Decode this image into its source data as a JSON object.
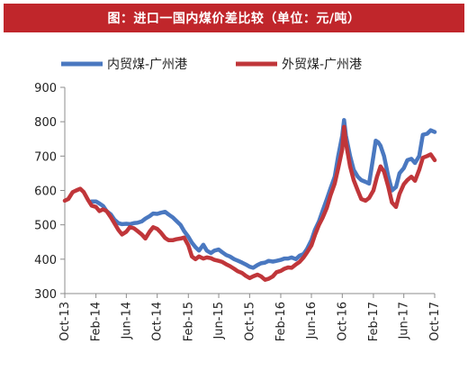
{
  "header": {
    "title": "图：进口一国内煤价差比较（单位：元/吨）"
  },
  "colors": {
    "title_bg": "#c0262b",
    "series_1": "#4a78c0",
    "series_2": "#c0363a",
    "axis": "#8c8c8c"
  },
  "chart_data": {
    "type": "line",
    "title": "图：进口一国内煤价差比较（单位：元/吨）",
    "xlabel": "",
    "ylabel": "",
    "ylim": [
      300,
      900
    ],
    "yticks": [
      300,
      400,
      500,
      600,
      700,
      800,
      900
    ],
    "xlim": [
      "2013-10",
      "2017-10"
    ],
    "xticks": [
      {
        "date": "2013-10",
        "label": "Oct-13"
      },
      {
        "date": "2014-02",
        "label": "Feb-14"
      },
      {
        "date": "2014-06",
        "label": "Jun-14"
      },
      {
        "date": "2014-10",
        "label": "Oct-14"
      },
      {
        "date": "2015-02",
        "label": "Feb-15"
      },
      {
        "date": "2015-06",
        "label": "Jun-15"
      },
      {
        "date": "2015-10",
        "label": "Oct-15"
      },
      {
        "date": "2016-02",
        "label": "Feb-16"
      },
      {
        "date": "2016-06",
        "label": "Jun-16"
      },
      {
        "date": "2016-10",
        "label": "Oct-16"
      },
      {
        "date": "2017-02",
        "label": "Feb-17"
      },
      {
        "date": "2017-06",
        "label": "Jun-17"
      },
      {
        "date": "2017-10",
        "label": "Oct-17"
      }
    ],
    "grid": false,
    "legend": "top-left",
    "series": [
      {
        "name": "内贸煤-广州港",
        "points": [
          [
            "2014-01-15",
            568
          ],
          [
            "2014-02-01",
            568
          ],
          [
            "2014-02-15",
            562
          ],
          [
            "2014-03-01",
            555
          ],
          [
            "2014-03-15",
            540
          ],
          [
            "2014-04-01",
            530
          ],
          [
            "2014-04-15",
            515
          ],
          [
            "2014-05-01",
            505
          ],
          [
            "2014-05-15",
            502
          ],
          [
            "2014-06-01",
            503
          ],
          [
            "2014-06-15",
            502
          ],
          [
            "2014-07-01",
            505
          ],
          [
            "2014-07-15",
            506
          ],
          [
            "2014-08-01",
            510
          ],
          [
            "2014-08-15",
            518
          ],
          [
            "2014-09-01",
            525
          ],
          [
            "2014-09-15",
            533
          ],
          [
            "2014-10-01",
            532
          ],
          [
            "2014-10-15",
            535
          ],
          [
            "2014-11-01",
            538
          ],
          [
            "2014-11-15",
            530
          ],
          [
            "2014-12-01",
            522
          ],
          [
            "2014-12-15",
            512
          ],
          [
            "2015-01-01",
            500
          ],
          [
            "2015-01-15",
            482
          ],
          [
            "2015-02-01",
            465
          ],
          [
            "2015-02-15",
            448
          ],
          [
            "2015-03-01",
            435
          ],
          [
            "2015-03-15",
            425
          ],
          [
            "2015-04-01",
            442
          ],
          [
            "2015-04-15",
            425
          ],
          [
            "2015-05-01",
            418
          ],
          [
            "2015-05-15",
            425
          ],
          [
            "2015-06-01",
            428
          ],
          [
            "2015-06-15",
            420
          ],
          [
            "2015-07-01",
            412
          ],
          [
            "2015-07-15",
            408
          ],
          [
            "2015-08-01",
            400
          ],
          [
            "2015-08-15",
            396
          ],
          [
            "2015-09-01",
            390
          ],
          [
            "2015-09-15",
            385
          ],
          [
            "2015-10-01",
            378
          ],
          [
            "2015-10-15",
            375
          ],
          [
            "2015-11-01",
            383
          ],
          [
            "2015-11-15",
            388
          ],
          [
            "2015-12-01",
            390
          ],
          [
            "2015-12-15",
            395
          ],
          [
            "2016-01-01",
            393
          ],
          [
            "2016-01-15",
            395
          ],
          [
            "2016-02-01",
            398
          ],
          [
            "2016-02-15",
            402
          ],
          [
            "2016-03-01",
            402
          ],
          [
            "2016-03-15",
            405
          ],
          [
            "2016-04-01",
            400
          ],
          [
            "2016-04-15",
            410
          ],
          [
            "2016-05-01",
            415
          ],
          [
            "2016-05-15",
            430
          ],
          [
            "2016-06-01",
            455
          ],
          [
            "2016-06-15",
            485
          ],
          [
            "2016-07-01",
            510
          ],
          [
            "2016-07-15",
            540
          ],
          [
            "2016-08-01",
            575
          ],
          [
            "2016-08-15",
            605
          ],
          [
            "2016-09-01",
            640
          ],
          [
            "2016-09-15",
            700
          ],
          [
            "2016-10-01",
            760
          ],
          [
            "2016-10-08",
            805
          ],
          [
            "2016-10-15",
            760
          ],
          [
            "2016-11-01",
            700
          ],
          [
            "2016-11-15",
            660
          ],
          [
            "2016-12-01",
            640
          ],
          [
            "2016-12-15",
            630
          ],
          [
            "2017-01-01",
            625
          ],
          [
            "2017-01-15",
            620
          ],
          [
            "2017-02-01",
            700
          ],
          [
            "2017-02-10",
            745
          ],
          [
            "2017-02-20",
            740
          ],
          [
            "2017-03-01",
            730
          ],
          [
            "2017-03-15",
            700
          ],
          [
            "2017-04-01",
            640
          ],
          [
            "2017-04-15",
            600
          ],
          [
            "2017-05-01",
            610
          ],
          [
            "2017-05-15",
            650
          ],
          [
            "2017-06-01",
            665
          ],
          [
            "2017-06-15",
            688
          ],
          [
            "2017-07-01",
            692
          ],
          [
            "2017-07-15",
            680
          ],
          [
            "2017-08-01",
            700
          ],
          [
            "2017-08-15",
            762
          ],
          [
            "2017-09-01",
            765
          ],
          [
            "2017-09-15",
            775
          ],
          [
            "2017-10-01",
            770
          ]
        ]
      },
      {
        "name": "外贸煤-广州港",
        "points": [
          [
            "2013-10-01",
            570
          ],
          [
            "2013-10-15",
            575
          ],
          [
            "2013-11-01",
            595
          ],
          [
            "2013-11-15",
            600
          ],
          [
            "2013-12-01",
            605
          ],
          [
            "2013-12-15",
            595
          ],
          [
            "2014-01-01",
            572
          ],
          [
            "2014-01-15",
            556
          ],
          [
            "2014-02-01",
            552
          ],
          [
            "2014-02-15",
            540
          ],
          [
            "2014-03-01",
            545
          ],
          [
            "2014-03-15",
            540
          ],
          [
            "2014-04-01",
            522
          ],
          [
            "2014-04-15",
            505
          ],
          [
            "2014-05-01",
            485
          ],
          [
            "2014-05-15",
            472
          ],
          [
            "2014-06-01",
            480
          ],
          [
            "2014-06-15",
            493
          ],
          [
            "2014-07-01",
            490
          ],
          [
            "2014-07-15",
            482
          ],
          [
            "2014-08-01",
            472
          ],
          [
            "2014-08-15",
            460
          ],
          [
            "2014-09-01",
            480
          ],
          [
            "2014-09-15",
            493
          ],
          [
            "2014-10-01",
            488
          ],
          [
            "2014-10-15",
            478
          ],
          [
            "2014-11-01",
            462
          ],
          [
            "2014-11-15",
            455
          ],
          [
            "2014-12-01",
            455
          ],
          [
            "2014-12-15",
            458
          ],
          [
            "2015-01-01",
            460
          ],
          [
            "2015-01-15",
            463
          ],
          [
            "2015-02-01",
            440
          ],
          [
            "2015-02-15",
            408
          ],
          [
            "2015-03-01",
            400
          ],
          [
            "2015-03-15",
            408
          ],
          [
            "2015-04-01",
            402
          ],
          [
            "2015-04-15",
            405
          ],
          [
            "2015-05-01",
            403
          ],
          [
            "2015-05-15",
            398
          ],
          [
            "2015-06-01",
            395
          ],
          [
            "2015-06-15",
            392
          ],
          [
            "2015-07-01",
            385
          ],
          [
            "2015-07-15",
            380
          ],
          [
            "2015-08-01",
            372
          ],
          [
            "2015-08-15",
            365
          ],
          [
            "2015-09-01",
            360
          ],
          [
            "2015-09-15",
            352
          ],
          [
            "2015-10-01",
            345
          ],
          [
            "2015-10-15",
            350
          ],
          [
            "2015-11-01",
            355
          ],
          [
            "2015-11-15",
            350
          ],
          [
            "2015-12-01",
            340
          ],
          [
            "2015-12-15",
            343
          ],
          [
            "2016-01-01",
            350
          ],
          [
            "2016-01-15",
            362
          ],
          [
            "2016-02-01",
            366
          ],
          [
            "2016-02-15",
            372
          ],
          [
            "2016-03-01",
            376
          ],
          [
            "2016-03-15",
            375
          ],
          [
            "2016-04-01",
            385
          ],
          [
            "2016-04-15",
            392
          ],
          [
            "2016-05-01",
            405
          ],
          [
            "2016-05-15",
            420
          ],
          [
            "2016-06-01",
            440
          ],
          [
            "2016-06-15",
            470
          ],
          [
            "2016-07-01",
            500
          ],
          [
            "2016-07-15",
            520
          ],
          [
            "2016-08-01",
            550
          ],
          [
            "2016-08-15",
            585
          ],
          [
            "2016-09-01",
            620
          ],
          [
            "2016-09-15",
            665
          ],
          [
            "2016-10-01",
            720
          ],
          [
            "2016-10-08",
            785
          ],
          [
            "2016-10-15",
            740
          ],
          [
            "2016-11-01",
            670
          ],
          [
            "2016-11-15",
            630
          ],
          [
            "2016-12-01",
            600
          ],
          [
            "2016-12-15",
            575
          ],
          [
            "2017-01-01",
            570
          ],
          [
            "2017-01-15",
            578
          ],
          [
            "2017-02-01",
            600
          ],
          [
            "2017-02-15",
            640
          ],
          [
            "2017-03-01",
            670
          ],
          [
            "2017-03-15",
            655
          ],
          [
            "2017-04-01",
            610
          ],
          [
            "2017-04-15",
            565
          ],
          [
            "2017-05-01",
            552
          ],
          [
            "2017-05-15",
            590
          ],
          [
            "2017-06-01",
            618
          ],
          [
            "2017-06-15",
            630
          ],
          [
            "2017-07-01",
            640
          ],
          [
            "2017-07-15",
            628
          ],
          [
            "2017-08-01",
            660
          ],
          [
            "2017-08-15",
            695
          ],
          [
            "2017-09-01",
            700
          ],
          [
            "2017-09-15",
            705
          ],
          [
            "2017-10-01",
            688
          ]
        ]
      }
    ]
  }
}
